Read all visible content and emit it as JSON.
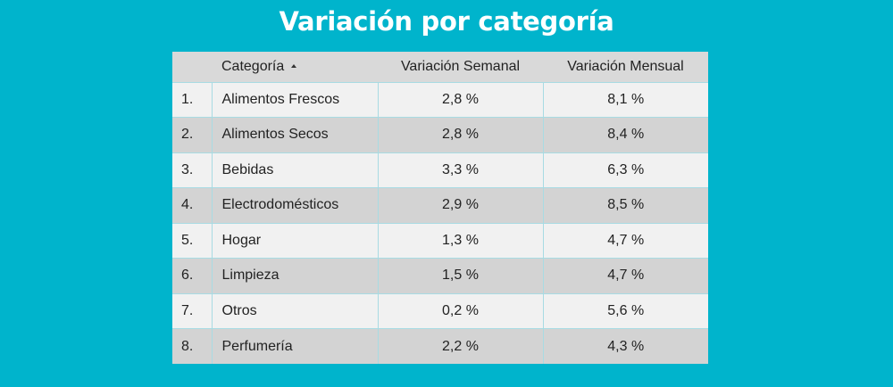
{
  "chart_data": {
    "type": "table",
    "title": "Variación por categoría",
    "columns": [
      "",
      "Categoría",
      "Variación Semanal",
      "Variación Mensual"
    ],
    "sort": {
      "column": "Categoría",
      "direction": "ascending"
    },
    "rows": [
      {
        "index": "1.",
        "category": "Alimentos Frescos",
        "weekly": "2,8 %",
        "monthly": "8,1 %"
      },
      {
        "index": "2.",
        "category": "Alimentos Secos",
        "weekly": "2,8 %",
        "monthly": "8,4 %"
      },
      {
        "index": "3.",
        "category": "Bebidas",
        "weekly": "3,3 %",
        "monthly": "6,3 %"
      },
      {
        "index": "4.",
        "category": "Electrodomésticos",
        "weekly": "2,9 %",
        "monthly": "8,5 %"
      },
      {
        "index": "5.",
        "category": "Hogar",
        "weekly": "1,3 %",
        "monthly": "4,7 %"
      },
      {
        "index": "6.",
        "category": "Limpieza",
        "weekly": "1,5 %",
        "monthly": "4,7 %"
      },
      {
        "index": "7.",
        "category": "Otros",
        "weekly": "0,2 %",
        "monthly": "5,6 %"
      },
      {
        "index": "8.",
        "category": "Perfumería",
        "weekly": "2,2 %",
        "monthly": "4,3 %"
      }
    ]
  },
  "colors": {
    "background": "#00b4cc",
    "header_bg": "#d9d9d9",
    "row_light": "#f1f1f1",
    "row_dark": "#d3d3d3",
    "divider": "#a8dbe3",
    "title": "#ffffff"
  },
  "icons": {
    "sort": "sort-ascending-icon"
  }
}
